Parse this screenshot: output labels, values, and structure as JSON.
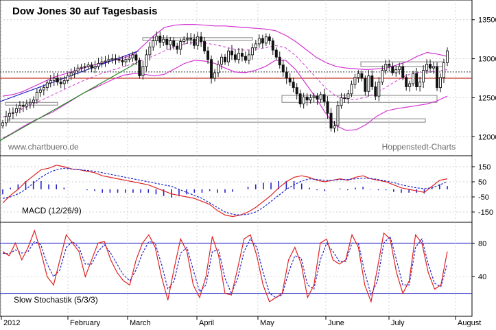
{
  "chart_data": [
    {
      "type": "candlestick",
      "title": "Dow Jones 30 auf Tagesbasis",
      "watermark_left": "www.chartbuero.de",
      "watermark_right": "Hoppenstedt-Charts",
      "yaxis_ticks": [
        "13500",
        "13000",
        "12500",
        "12000"
      ],
      "ylim": [
        11800,
        13700
      ],
      "grid": true,
      "close_series": [
        12180,
        12260,
        12300,
        12310,
        12360,
        12400,
        12390,
        12420,
        12440,
        12470,
        12570,
        12600,
        12630,
        12690,
        12720,
        12750,
        12700,
        12680,
        12720,
        12780,
        12820,
        12840,
        12880,
        12890,
        12900,
        12920,
        12880,
        12900,
        12940,
        12960,
        12970,
        12990,
        13000,
        12990,
        12980,
        12960,
        12990,
        13010,
        13050,
        12980,
        12780,
        12900,
        13050,
        13150,
        13230,
        13290,
        13210,
        13250,
        13180,
        13230,
        13160,
        13120,
        13220,
        13250,
        13260,
        13250,
        13170,
        13280,
        13220,
        13100,
        12990,
        12750,
        12820,
        12930,
        13020,
        12960,
        13100,
        13050,
        12990,
        13070,
        13030,
        12980,
        13050,
        13140,
        13190,
        13260,
        13200,
        13280,
        13230,
        13110,
        13020,
        12920,
        12830,
        12750,
        12700,
        12630,
        12550,
        12420,
        12510,
        12470,
        12500,
        12520,
        12480,
        12540,
        12450,
        12300,
        12110,
        12140,
        12400,
        12500,
        12490,
        12550,
        12670,
        12760,
        12810,
        12750,
        12580,
        12780,
        12640,
        12520,
        12700,
        12850,
        12930,
        12900,
        12820,
        12860,
        12900,
        12760,
        12640,
        12680,
        12810,
        12640,
        12700,
        12850,
        12930,
        12880,
        12900,
        12630,
        12760,
        12950,
        13100
      ],
      "bollinger": {
        "upper": [
          12520,
          12540,
          12580,
          12640,
          12700,
          12760,
          12800,
          12840,
          12880,
          12920,
          12950,
          12980,
          13010,
          13060,
          13180,
          13300,
          13400,
          13430,
          13440,
          13440,
          13430,
          13420,
          13420,
          13410,
          13400,
          13390,
          13380,
          13360,
          13300,
          13220,
          13120,
          13020,
          12950,
          12900,
          12880,
          12870,
          12860,
          12870,
          12880,
          12920,
          12960,
          13030,
          13080,
          13060,
          13030
        ],
        "middle": [
          12250,
          12300,
          12360,
          12420,
          12480,
          12540,
          12600,
          12660,
          12720,
          12770,
          12820,
          12860,
          12900,
          12940,
          12990,
          13040,
          13100,
          13150,
          13190,
          13210,
          13200,
          13180,
          13150,
          13120,
          13110,
          13120,
          13140,
          13170,
          13140,
          13040,
          12900,
          12760,
          12620,
          12520,
          12480,
          12480,
          12510,
          12560,
          12640,
          12720,
          12790,
          12820,
          12830,
          12840,
          12860
        ],
        "lower": [
          11980,
          12050,
          12130,
          12200,
          12260,
          12320,
          12400,
          12480,
          12560,
          12620,
          12680,
          12740,
          12790,
          12810,
          12800,
          12780,
          12800,
          12870,
          12940,
          12980,
          12970,
          12940,
          12880,
          12830,
          12820,
          12850,
          12900,
          12980,
          12980,
          12860,
          12680,
          12500,
          12290,
          12140,
          12080,
          12090,
          12160,
          12260,
          12330,
          12360,
          12380,
          12400,
          12420,
          12460,
          12520
        ]
      },
      "horizontal_lines": [
        {
          "value": 12830,
          "style": "dotted"
        },
        {
          "value": 12750,
          "color": "#c0392b"
        }
      ]
    },
    {
      "type": "line",
      "label": "MACD (12/26/9)",
      "yaxis_ticks": [
        "150",
        "50",
        "-50",
        "-150"
      ],
      "ylim": [
        -200,
        200
      ],
      "macd": [
        -90,
        -40,
        0,
        50,
        90,
        130,
        140,
        160,
        150,
        135,
        130,
        120,
        110,
        90,
        80,
        70,
        60,
        50,
        40,
        30,
        10,
        -10,
        -30,
        -40,
        -50,
        -60,
        -80,
        -100,
        -140,
        -170,
        -180,
        -170,
        -150,
        -120,
        -80,
        -40,
        10,
        50,
        80,
        90,
        80,
        60,
        50,
        60,
        70,
        60,
        80,
        90,
        70,
        60,
        50,
        30,
        10,
        0,
        -10,
        -20,
        20,
        60,
        70
      ],
      "signal": [
        -60,
        -50,
        -30,
        0,
        40,
        80,
        110,
        130,
        140,
        135,
        130,
        125,
        120,
        110,
        100,
        90,
        80,
        70,
        60,
        50,
        40,
        30,
        20,
        0,
        -20,
        -40,
        -60,
        -90,
        -120,
        -150,
        -165,
        -170,
        -165,
        -150,
        -120,
        -80,
        -40,
        0,
        30,
        55,
        70,
        65,
        60,
        60,
        65,
        65,
        70,
        75,
        72,
        65,
        55,
        45,
        30,
        20,
        10,
        5,
        10,
        30,
        50
      ],
      "histogram_colors": {
        "macd": "#e02020",
        "signal": "#2323c8",
        "histogram": "#2323c8"
      }
    },
    {
      "type": "line",
      "label": "Slow Stochastik (5/3/3)",
      "yaxis_ticks": [
        "80",
        "40"
      ],
      "ylim": [
        0,
        100
      ],
      "reference_lines": [
        80,
        20
      ],
      "k": [
        70,
        65,
        80,
        60,
        75,
        95,
        70,
        40,
        30,
        60,
        90,
        80,
        70,
        40,
        60,
        80,
        82,
        60,
        45,
        35,
        30,
        60,
        80,
        90,
        75,
        40,
        12,
        50,
        85,
        70,
        30,
        15,
        40,
        88,
        65,
        20,
        18,
        50,
        85,
        90,
        65,
        30,
        10,
        15,
        20,
        60,
        75,
        55,
        15,
        30,
        80,
        85,
        60,
        55,
        60,
        90,
        75,
        30,
        10,
        50,
        92,
        85,
        45,
        20,
        35,
        90,
        80,
        45,
        25,
        30,
        70
      ],
      "d": [
        68,
        67,
        72,
        68,
        70,
        82,
        78,
        55,
        40,
        48,
        75,
        82,
        75,
        55,
        55,
        70,
        78,
        68,
        55,
        42,
        35,
        48,
        68,
        82,
        80,
        55,
        25,
        35,
        68,
        75,
        48,
        22,
        30,
        70,
        72,
        38,
        20,
        38,
        70,
        85,
        75,
        45,
        20,
        15,
        18,
        45,
        65,
        62,
        30,
        25,
        60,
        80,
        70,
        58,
        58,
        80,
        80,
        45,
        18,
        35,
        80,
        88,
        60,
        30,
        30,
        75,
        85,
        55,
        32,
        28,
        55
      ],
      "colors": {
        "k": "#e02020",
        "d": "#2323c8"
      }
    }
  ],
  "x_axis": {
    "months": [
      "2012",
      "February",
      "March",
      "April",
      "May",
      "June",
      "July",
      "August"
    ]
  },
  "colors": {
    "candle": "#111111",
    "bollinger": "#d233d2",
    "moving_average": "#d233d2",
    "trend_blue": "#2323c8",
    "trend_green": "#1e8a1e",
    "support_red": "#c0392b",
    "grid": "#c0c0c0",
    "box": "#7f7f7f"
  }
}
